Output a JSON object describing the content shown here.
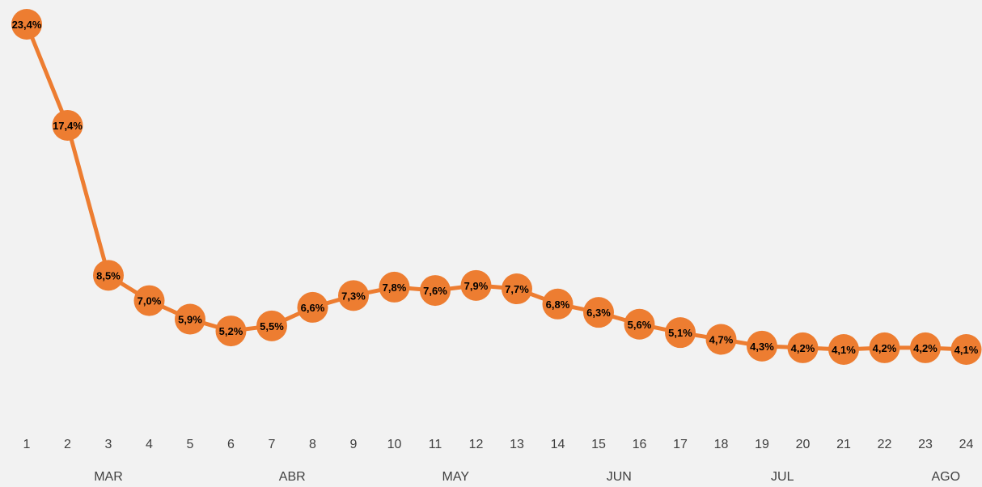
{
  "chart_data": {
    "type": "line",
    "title": "",
    "xlabel": "",
    "ylabel": "",
    "x": [
      "1",
      "2",
      "3",
      "4",
      "5",
      "6",
      "7",
      "8",
      "9",
      "10",
      "11",
      "12",
      "13",
      "14",
      "15",
      "16",
      "17",
      "18",
      "19",
      "20",
      "21",
      "22",
      "23",
      "24"
    ],
    "series": [
      {
        "values": [
          23.4,
          17.4,
          8.5,
          7.0,
          5.9,
          5.2,
          5.5,
          6.6,
          7.3,
          7.8,
          7.6,
          7.9,
          7.7,
          6.8,
          6.3,
          5.6,
          5.1,
          4.7,
          4.3,
          4.2,
          4.1,
          4.2,
          4.2,
          4.1
        ],
        "labels": [
          "23,4%",
          "17,4%",
          "8,5%",
          "7,0%",
          "5,9%",
          "5,2%",
          "5,5%",
          "6,6%",
          "7,3%",
          "7,8%",
          "7,6%",
          "7,9%",
          "7,7%",
          "6,8%",
          "6,3%",
          "5,6%",
          "5,1%",
          "4,7%",
          "4,3%",
          "4,2%",
          "4,1%",
          "4,2%",
          "4,2%",
          "4,1%"
        ]
      }
    ],
    "months": [
      {
        "label": "MAR",
        "at": 2
      },
      {
        "label": "ABR",
        "at": 6.5
      },
      {
        "label": "MAY",
        "at": 10.5
      },
      {
        "label": "JUN",
        "at": 14.5
      },
      {
        "label": "JUL",
        "at": 18.5
      },
      {
        "label": "AGO",
        "at": 22.5
      }
    ],
    "grid": false,
    "legend": "none",
    "colors": {
      "line": "#ed7d31",
      "marker": "#ed7d31",
      "background": "#f2f2f2",
      "label_text": "#000000",
      "axis_text": "#404040"
    }
  }
}
